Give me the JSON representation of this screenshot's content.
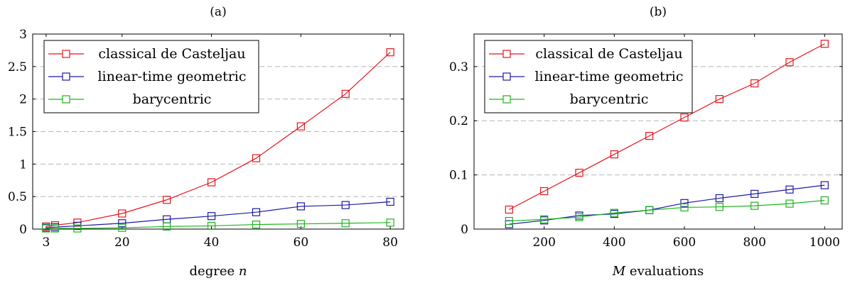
{
  "chart_data": [
    {
      "type": "line",
      "title": "(a)",
      "xlabel_main": "degree ",
      "xlabel_var": "n",
      "xlim": [
        0,
        83
      ],
      "ylim": [
        0,
        3
      ],
      "x_ticks": [
        3,
        20,
        40,
        60,
        80
      ],
      "y_ticks": [
        0,
        0.5,
        1,
        1.5,
        2,
        2.5,
        3
      ],
      "y_tick_labels": [
        "0",
        "0.5",
        "1",
        "1.5",
        "2",
        "2.5",
        "3"
      ],
      "grid": "horizontal-dashed",
      "legend_position": "top-left",
      "x": [
        3,
        5,
        10,
        20,
        30,
        40,
        50,
        60,
        70,
        80
      ],
      "series": [
        {
          "name": "classical de Casteljau",
          "color": "#e8141b",
          "values": [
            0.04,
            0.06,
            0.1,
            0.24,
            0.45,
            0.72,
            1.09,
            1.58,
            2.08,
            2.72
          ]
        },
        {
          "name": "linear-time geometric",
          "color": "#1a1aa6",
          "values": [
            0.02,
            0.03,
            0.05,
            0.09,
            0.15,
            0.2,
            0.26,
            0.35,
            0.37,
            0.42
          ]
        },
        {
          "name": "barycentric",
          "color": "#1cb51c",
          "values": [
            0.01,
            0.01,
            0.01,
            0.02,
            0.04,
            0.05,
            0.07,
            0.08,
            0.09,
            0.1
          ]
        }
      ]
    },
    {
      "type": "line",
      "title": "(b)",
      "xlabel_main": " evaluations",
      "xlabel_var": "M",
      "xlim": [
        0,
        1050
      ],
      "ylim": [
        0,
        0.36
      ],
      "x_ticks": [
        200,
        400,
        600,
        800,
        1000
      ],
      "y_ticks": [
        0,
        0.1,
        0.2,
        0.3
      ],
      "y_tick_labels": [
        "0",
        "0.1",
        "0.2",
        "0.3"
      ],
      "grid": "horizontal-dashed",
      "legend_position": "top-left",
      "x": [
        100,
        200,
        300,
        400,
        500,
        600,
        700,
        800,
        900,
        1000
      ],
      "series": [
        {
          "name": "classical de Casteljau",
          "color": "#e8141b",
          "values": [
            0.036,
            0.07,
            0.104,
            0.138,
            0.172,
            0.206,
            0.24,
            0.269,
            0.308,
            0.342
          ]
        },
        {
          "name": "linear-time geometric",
          "color": "#1a1aa6",
          "values": [
            0.009,
            0.016,
            0.025,
            0.028,
            0.035,
            0.048,
            0.057,
            0.065,
            0.073,
            0.081
          ]
        },
        {
          "name": "barycentric",
          "color": "#1cb51c",
          "values": [
            0.015,
            0.018,
            0.022,
            0.03,
            0.035,
            0.04,
            0.041,
            0.043,
            0.047,
            0.053
          ]
        }
      ]
    }
  ]
}
